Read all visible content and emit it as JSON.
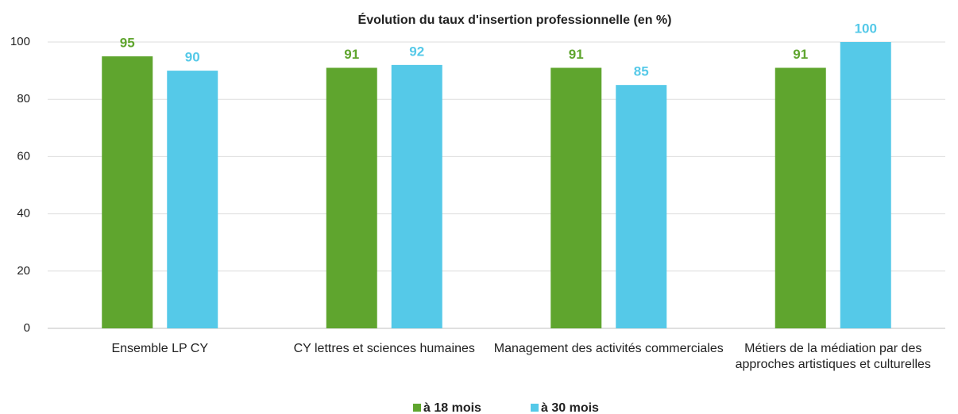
{
  "chart_data": {
    "type": "bar",
    "title": "Évolution du taux d'insertion professionnelle (en %)",
    "categories": [
      "Ensemble LP CY",
      "CY lettres et sciences humaines",
      "Management des activités commerciales",
      "Métiers de la médiation par des approches artistiques et culturelles"
    ],
    "series": [
      {
        "name": "à 18 mois",
        "color": "#5fa52e",
        "values": [
          95,
          91,
          91,
          91
        ]
      },
      {
        "name": "à 30 mois",
        "color": "#55c9e8",
        "values": [
          90,
          92,
          85,
          100
        ]
      }
    ],
    "ylim": [
      0,
      100
    ],
    "yticks": [
      0,
      20,
      40,
      60,
      80,
      100
    ],
    "grid": true,
    "legend": "bottom"
  }
}
